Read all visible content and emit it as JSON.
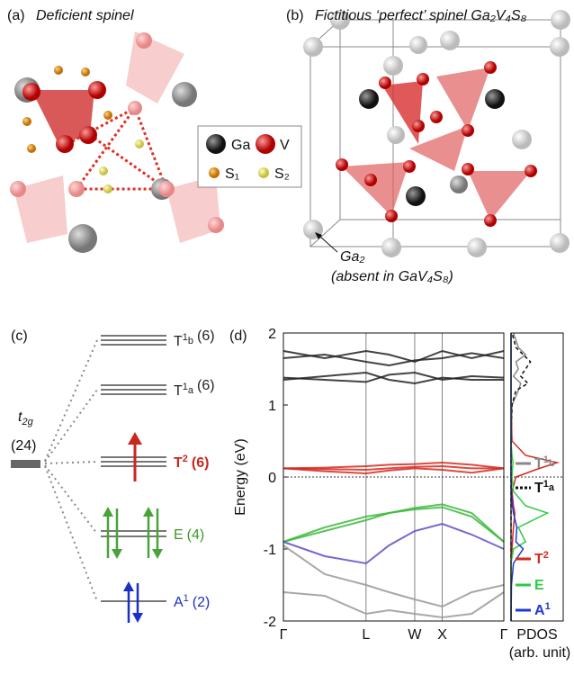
{
  "panel_a": {
    "label": "(a)",
    "title": "Deficient spinel",
    "legend": [
      "Ga",
      "V",
      "S₁",
      "S₂"
    ]
  },
  "panel_b": {
    "label": "(b)",
    "title": "Fictitious ‘perfect’ spinel Ga₂V₄S₈",
    "annotation": [
      "Ga₂",
      "(absent in GaV₄S₈)"
    ]
  },
  "panel_c": {
    "label": "(c)",
    "t2g": {
      "main": "t",
      "sub": "2g"
    },
    "t2g_count": "(24)",
    "levels": [
      {
        "main": "T",
        "sup": "1",
        "sub": "b",
        "count": "(6)",
        "color": "#222"
      },
      {
        "main": "T",
        "sup": "1",
        "sub": "a",
        "count": "(6)",
        "color": "#222"
      },
      {
        "main": "T",
        "sup": "2",
        "count": "(6)",
        "color": "#c8281e"
      },
      {
        "main": "E",
        "count": "(4)",
        "color": "#3a9a2a"
      },
      {
        "main": "A",
        "sup": "1",
        "count": "(2)",
        "color": "#1c2fc8"
      }
    ]
  },
  "panel_d": {
    "label": "(d)"
  },
  "chart_data": [
    {
      "type": "line",
      "ylabel": "Energy (eV)",
      "x": [
        0,
        0.45,
        0.9,
        1.15,
        1.43,
        1.73,
        2.05,
        2.4
      ],
      "xlim": [
        0,
        2.4
      ],
      "xticks": [
        {
          "value": 0,
          "label": "Γ"
        },
        {
          "value": 0.9,
          "label": "L"
        },
        {
          "value": 1.43,
          "label": "W"
        },
        {
          "value": 1.73,
          "label": "X"
        },
        {
          "value": 2.4,
          "label": "Γ"
        }
      ],
      "ylim": [
        -2,
        2
      ],
      "yticks": [
        -2,
        -1,
        0,
        1,
        2
      ],
      "series": [
        {
          "color": "#d42a20",
          "values": [
            0.12,
            0.13,
            0.15,
            0.17,
            0.18,
            0.2,
            0.17,
            0.12
          ]
        },
        {
          "color": "#d42a20",
          "values": [
            0.12,
            0.11,
            0.1,
            0.12,
            0.14,
            0.15,
            0.12,
            0.12
          ]
        },
        {
          "color": "#d42a20",
          "values": [
            0.12,
            0.08,
            0.05,
            0.09,
            0.12,
            0.1,
            0.06,
            0.12
          ]
        },
        {
          "color": "#3cb83c",
          "values": [
            -0.9,
            -0.7,
            -0.55,
            -0.5,
            -0.45,
            -0.42,
            -0.55,
            -0.9
          ]
        },
        {
          "color": "#3cb83c",
          "values": [
            -0.9,
            -0.75,
            -0.6,
            -0.5,
            -0.43,
            -0.38,
            -0.5,
            -0.9
          ]
        },
        {
          "color": "#5a4fc8",
          "values": [
            -0.9,
            -1.1,
            -1.2,
            -0.95,
            -0.75,
            -0.65,
            -0.8,
            -1.0
          ]
        },
        {
          "color": "#222222",
          "values": [
            1.35,
            1.4,
            1.45,
            1.35,
            1.3,
            1.38,
            1.35,
            1.35
          ]
        },
        {
          "color": "#222222",
          "values": [
            1.38,
            1.35,
            1.32,
            1.42,
            1.45,
            1.35,
            1.4,
            1.38
          ]
        },
        {
          "color": "#222222",
          "values": [
            1.65,
            1.7,
            1.6,
            1.55,
            1.62,
            1.65,
            1.72,
            1.65
          ]
        },
        {
          "color": "#222222",
          "values": [
            1.75,
            1.65,
            1.75,
            1.7,
            1.6,
            1.75,
            1.65,
            1.75
          ]
        },
        {
          "color": "#999999",
          "values": [
            -0.95,
            -1.35,
            -1.5,
            -1.6,
            -1.7,
            -1.8,
            -1.6,
            -1.5
          ]
        },
        {
          "color": "#999999",
          "values": [
            -1.6,
            -1.65,
            -1.9,
            -1.85,
            -1.9,
            -1.95,
            -1.9,
            -1.6
          ]
        }
      ]
    },
    {
      "type": "pdos",
      "xlabel": [
        "PDOS",
        "(arb. unit)"
      ],
      "xlim": [
        0,
        1
      ],
      "energies": [
        -2,
        -1.5,
        -1.2,
        -1,
        -0.9,
        -0.7,
        -0.5,
        -0.4,
        -0.2,
        0,
        0.1,
        0.2,
        0.3,
        0.5,
        1,
        1.2,
        1.3,
        1.4,
        1.5,
        1.6,
        1.7,
        1.8,
        2
      ],
      "series": [
        {
          "name": "T",
          "sup": "1",
          "sub": "b",
          "color": "#888888",
          "dash": false,
          "values": [
            0,
            0,
            0,
            0,
            0,
            0,
            0,
            0,
            0,
            0,
            0,
            0,
            0,
            0,
            0.02,
            0.15,
            0.2,
            0.05,
            0.15,
            0.1,
            0.3,
            0.15,
            0.05
          ]
        },
        {
          "name": "T",
          "sup": "1",
          "sub": "a",
          "color": "#111111",
          "dash": true,
          "values": [
            0,
            0,
            0,
            0,
            0,
            0,
            0,
            0,
            0,
            0,
            0,
            0,
            0,
            0,
            0.02,
            0.1,
            0.35,
            0.2,
            0.3,
            0.4,
            0.25,
            0.1,
            0.02
          ]
        },
        {
          "name": "T",
          "sup": "2",
          "color": "#d42a20",
          "dash": false,
          "values": [
            0,
            0,
            0,
            0.02,
            0.03,
            0.05,
            0.08,
            0.05,
            0.02,
            0.1,
            0.5,
            0.95,
            0.3,
            0.02,
            0,
            0,
            0,
            0,
            0,
            0,
            0,
            0,
            0
          ]
        },
        {
          "name": "E",
          "color": "#2ecc40",
          "dash": false,
          "values": [
            0,
            0,
            0,
            0.05,
            0.3,
            0.15,
            0.75,
            0.3,
            0.05,
            0.02,
            0.03,
            0.04,
            0.02,
            0,
            0,
            0,
            0,
            0,
            0,
            0,
            0,
            0,
            0
          ]
        },
        {
          "name": "A",
          "sup": "1",
          "color": "#2038d0",
          "dash": false,
          "values": [
            0,
            0.01,
            0.05,
            0.25,
            0.1,
            0.12,
            0.05,
            0.03,
            0.01,
            0,
            0,
            0,
            0,
            0,
            0,
            0,
            0,
            0,
            0,
            0,
            0,
            0,
            0
          ]
        }
      ]
    }
  ]
}
